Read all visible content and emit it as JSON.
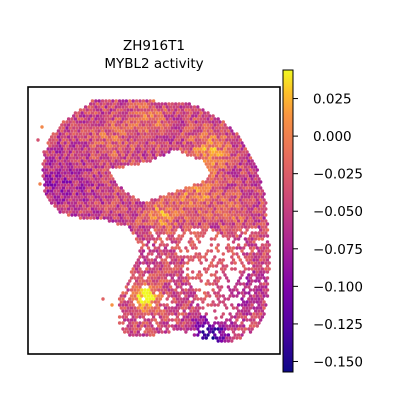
{
  "chart_data": {
    "type": "heatmap",
    "title": "ZH916T1",
    "subtitle": "MYBL2 activity",
    "xlabel": "",
    "ylabel": "",
    "colormap": "plasma",
    "colorbar": {
      "range": [
        -0.157,
        0.044
      ],
      "ticks": [
        0.025,
        0.0,
        -0.025,
        -0.05,
        -0.075,
        -0.1,
        -0.125,
        -0.15
      ],
      "tick_labels": [
        "0.025",
        "0.000",
        "−0.025",
        "−0.050",
        "−0.075",
        "−0.100",
        "−0.125",
        "−0.150"
      ]
    },
    "grid": false,
    "legend": "none"
  }
}
